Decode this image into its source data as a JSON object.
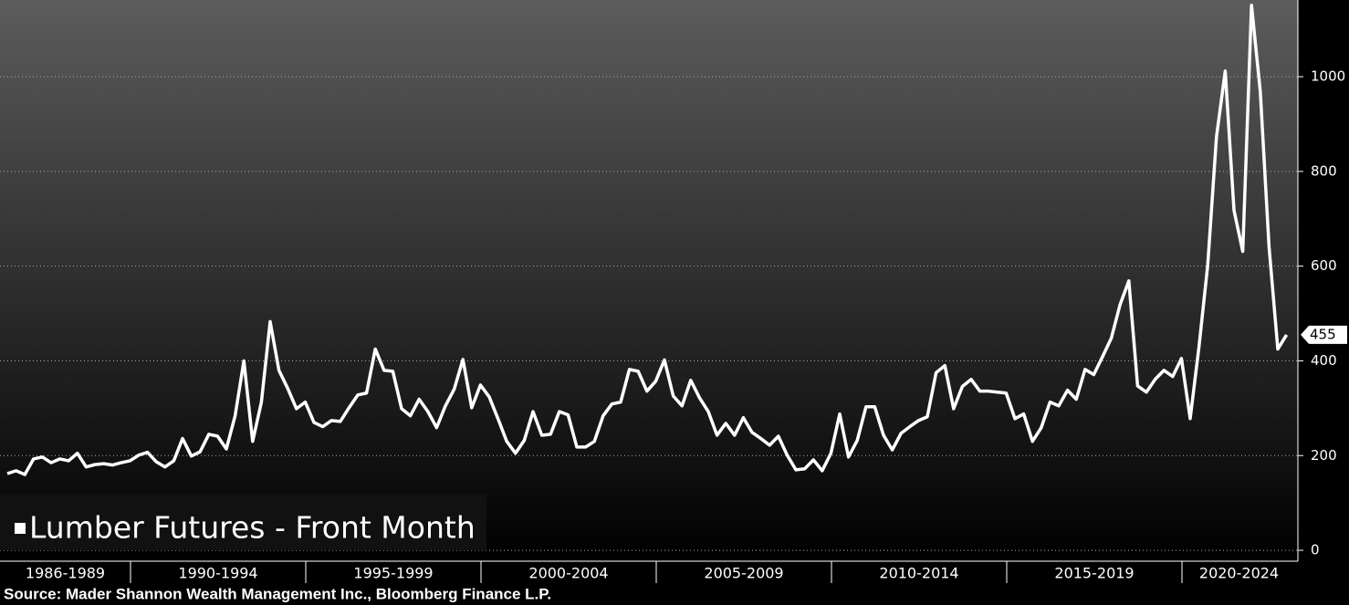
{
  "chart_data": {
    "type": "line",
    "series": [
      {
        "name": "Lumber Futures - Front Month",
        "color": "#ffffff",
        "values": [
          162,
          168,
          160,
          193,
          197,
          185,
          193,
          189,
          205,
          176,
          181,
          183,
          180,
          185,
          189,
          201,
          207,
          187,
          176,
          189,
          236,
          199,
          208,
          245,
          241,
          214,
          284,
          400,
          230,
          313,
          483,
          380,
          342,
          299,
          313,
          270,
          261,
          274,
          272,
          301,
          328,
          332,
          425,
          380,
          378,
          299,
          284,
          319,
          293,
          259,
          305,
          340,
          403,
          301,
          349,
          324,
          278,
          230,
          205,
          232,
          293,
          243,
          245,
          293,
          286,
          218,
          218,
          230,
          284,
          309,
          313,
          382,
          378,
          336,
          357,
          402,
          326,
          305,
          359,
          322,
          293,
          243,
          268,
          243,
          280,
          249,
          236,
          222,
          241,
          201,
          170,
          172,
          191,
          168,
          205,
          288,
          197,
          232,
          303,
          303,
          243,
          212,
          247,
          261,
          274,
          282,
          375,
          390,
          299,
          346,
          361,
          336,
          336,
          334,
          332,
          278,
          288,
          230,
          259,
          313,
          305,
          338,
          319,
          382,
          371,
          409,
          448,
          519,
          569,
          347,
          334,
          361,
          380,
          367,
          405,
          278,
          429,
          602,
          873,
          1012,
          718,
          631,
          1151,
          969,
          641,
          425,
          455
        ]
      }
    ],
    "period_labels": [
      "1986-1989",
      "1990-1994",
      "1995-1999",
      "2000-2004",
      "2005-2009",
      "2010-2014",
      "2015-2019",
      "2020-2024"
    ],
    "ylim": [
      -23,
      1162
    ],
    "yticks": [
      0,
      200,
      400,
      600,
      800,
      1000
    ],
    "grid": true,
    "source": "Source: Mader Shannon Wealth Management Inc., Bloomberg Finance L.P."
  }
}
